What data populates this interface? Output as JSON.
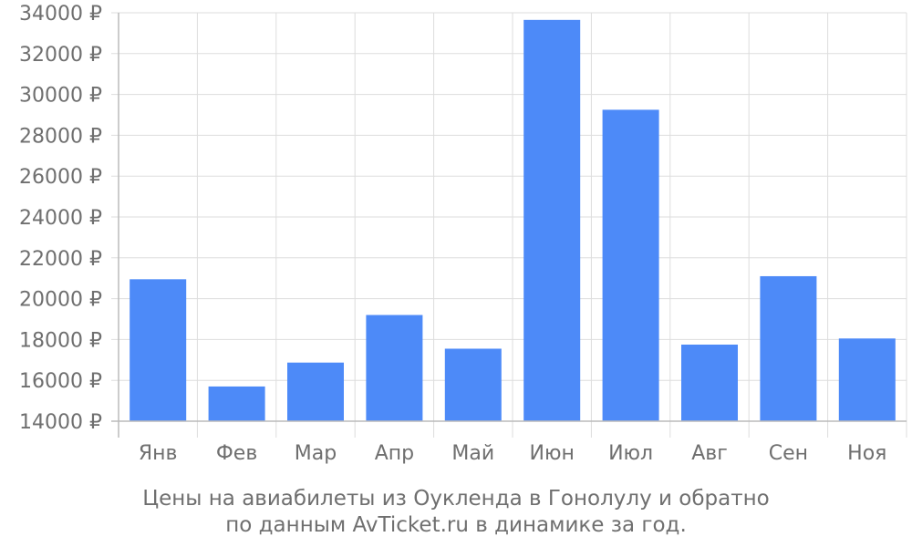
{
  "chart_data": {
    "type": "bar",
    "categories": [
      "Янв",
      "Фев",
      "Мар",
      "Апр",
      "Май",
      "Июн",
      "Июл",
      "Авг",
      "Сен",
      "Ноя"
    ],
    "series": [
      {
        "values": [
          20950,
          15700,
          16870,
          19200,
          17550,
          33650,
          29250,
          17750,
          21100,
          18050
        ]
      }
    ],
    "yticks": [
      "14000 ₽",
      "16000 ₽",
      "18000 ₽",
      "20000 ₽",
      "22000 ₽",
      "24000 ₽",
      "26000 ₽",
      "28000 ₽",
      "30000 ₽",
      "32000 ₽",
      "34000 ₽"
    ],
    "ylim": [
      14000,
      34000
    ],
    "grid": true,
    "colors": {
      "bar": "#4d8af8",
      "grid": "#dddddd",
      "axis": "#bbbbbb",
      "text": "#6f6f6f"
    }
  },
  "caption": {
    "line1": "Цены на авиабилеты из Оукленда в Гонолулу и обратно",
    "line2": "по данным AvTicket.ru в динамике за год."
  }
}
